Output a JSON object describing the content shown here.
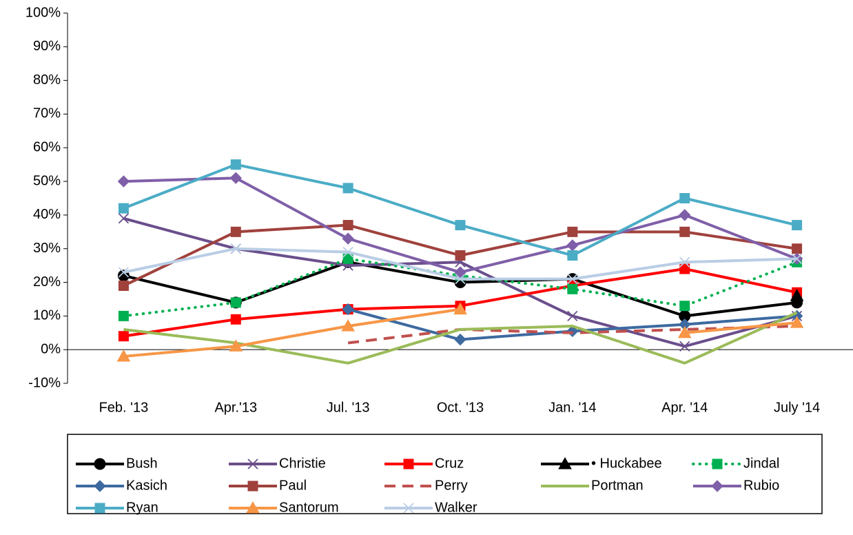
{
  "chart_data": {
    "type": "line",
    "categories": [
      "Feb. '13",
      "Apr.'13",
      "Jul. '13",
      "Oct. '13",
      "Jan. '14",
      "Apr. '14",
      "July '14"
    ],
    "ylim": [
      -10,
      100
    ],
    "yticks": [
      {
        "value": -10,
        "label": "-10%"
      },
      {
        "value": 0,
        "label": "0%"
      },
      {
        "value": 10,
        "label": "10%"
      },
      {
        "value": 20,
        "label": "20%"
      },
      {
        "value": 30,
        "label": "30%"
      },
      {
        "value": 40,
        "label": "40%"
      },
      {
        "value": 50,
        "label": "50%"
      },
      {
        "value": 60,
        "label": "60%"
      },
      {
        "value": 70,
        "label": "70%"
      },
      {
        "value": 80,
        "label": "80%"
      },
      {
        "value": 90,
        "label": "90%"
      },
      {
        "value": 100,
        "label": "100%"
      }
    ],
    "legend": "bottom",
    "series": [
      {
        "name": "Bush",
        "color": "#000000",
        "marker": "circle",
        "dash": "solid",
        "values": [
          22,
          14,
          26,
          20,
          21,
          10,
          14
        ]
      },
      {
        "name": "Christie",
        "color": "#6a4e8c",
        "marker": "x",
        "dash": "solid",
        "values": [
          39,
          30,
          25,
          26,
          10,
          1,
          10
        ]
      },
      {
        "name": "Cruz",
        "color": "#ff0000",
        "marker": "square",
        "dash": "solid",
        "values": [
          4,
          9,
          12,
          13,
          19,
          24,
          17
        ]
      },
      {
        "name": "• Huckabee",
        "color": "#000000",
        "marker": "triangle",
        "dash": "solid",
        "values": [
          null,
          null,
          null,
          null,
          null,
          null,
          16
        ]
      },
      {
        "name": "Jindal",
        "color": "#00b050",
        "marker": "square",
        "dash": "dot",
        "values": [
          10,
          14,
          27,
          22,
          18,
          13,
          26
        ]
      },
      {
        "name": "Kasich",
        "color": "#3d6aa0",
        "marker": "diamond",
        "dash": "solid",
        "values": [
          null,
          null,
          12,
          3,
          5.5,
          7.5,
          10
        ]
      },
      {
        "name": "Paul",
        "color": "#a0413c",
        "marker": "square",
        "dash": "solid",
        "values": [
          19,
          35,
          37,
          28,
          35,
          35,
          30
        ]
      },
      {
        "name": "Perry",
        "color": "#c0504d",
        "marker": "none",
        "dash": "dash",
        "values": [
          null,
          null,
          2,
          6,
          5,
          6,
          7
        ]
      },
      {
        "name": "Portman",
        "color": "#9bbb59",
        "marker": "none",
        "dash": "solid",
        "values": [
          6,
          2,
          -4,
          6,
          7,
          -4,
          11
        ]
      },
      {
        "name": "Rubio",
        "color": "#7f5fa8",
        "marker": "diamond",
        "dash": "solid",
        "values": [
          50,
          51,
          33,
          23,
          31,
          40,
          27
        ]
      },
      {
        "name": "Ryan",
        "color": "#4bacc6",
        "marker": "square",
        "dash": "solid",
        "values": [
          42,
          55,
          48,
          37,
          28,
          45,
          37
        ]
      },
      {
        "name": "Santorum",
        "color": "#f79646",
        "marker": "triangle",
        "dash": "solid",
        "values": [
          -2,
          1,
          7,
          12,
          null,
          5,
          8
        ]
      },
      {
        "name": "Walker",
        "color": "#b9cde5",
        "marker": "x",
        "dash": "solid",
        "values": [
          23,
          30,
          29,
          21,
          21,
          26,
          27
        ]
      }
    ]
  }
}
